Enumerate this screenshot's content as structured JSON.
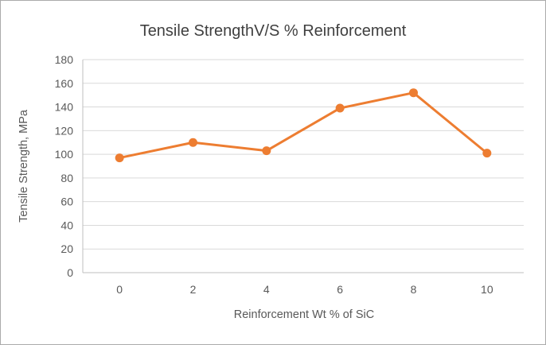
{
  "chart_data": {
    "type": "line",
    "title": "Tensile StrengthV/S % Reinforcement",
    "xlabel": "Reinforcement Wt % of SiC",
    "ylabel": "Tensile Strength, MPa",
    "categories": [
      "0",
      "2",
      "4",
      "6",
      "8",
      "10"
    ],
    "series": [
      {
        "name": "Tensile Strength",
        "values": [
          97,
          110,
          103,
          139,
          152,
          101
        ]
      }
    ],
    "ylim": [
      0,
      180
    ],
    "ytick_step": 20,
    "grid": true,
    "legend": "none",
    "marker": "circle"
  },
  "colors": {
    "line": "#ED7D31",
    "marker": "#ED7D31",
    "title_text": "#404040",
    "axis_text": "#595959",
    "gridline": "#D9D9D9",
    "axis_line": "#BFBFBF",
    "frame_border": "#ABABAB",
    "background": "#FFFFFF"
  }
}
